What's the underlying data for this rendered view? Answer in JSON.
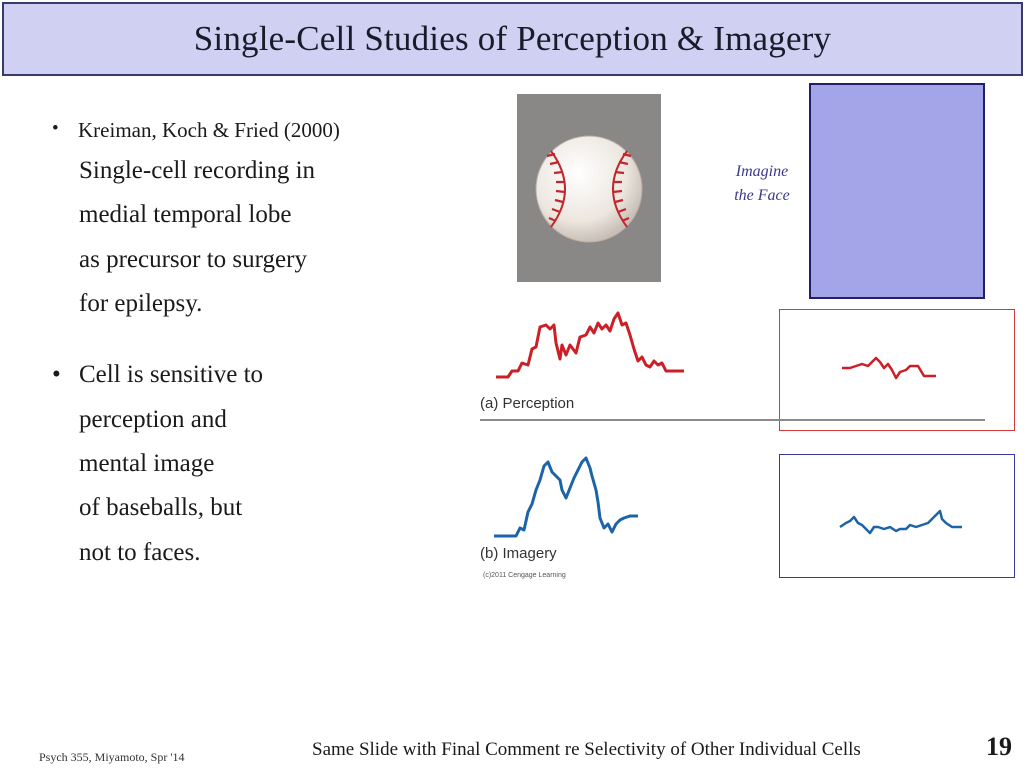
{
  "title": "Single-Cell Studies of Perception & Imagery",
  "bullets": [
    {
      "bullet": "•",
      "heading": "Kreiman, Koch & Fried (2000)",
      "lines": [
        "Single-cell recording in",
        "medial temporal lobe",
        "as precursor to surgery",
        "for epilepsy."
      ]
    },
    {
      "bullet": "•",
      "lines": [
        "Cell is sensitive to",
        "perception and",
        "mental image",
        "of baseballs, but",
        "not to faces."
      ]
    }
  ],
  "imagine_label": [
    "Imagine",
    "the Face"
  ],
  "panel_labels": {
    "perception": "(a) Perception",
    "imagery": "(b) Imagery"
  },
  "copyright": "(c)2011 Cengage Learning",
  "footer": {
    "left": "Psych 355, Miyamoto, Spr '14",
    "right": "Same Slide with Final Comment re Selectivity of Other Individual Cells",
    "page": "19"
  },
  "colors": {
    "perception_trace": "#cc1f26",
    "imagery_trace": "#1c63a8",
    "title_bg": "#d0d0f2",
    "face_rect": "#a3a5e8"
  }
}
